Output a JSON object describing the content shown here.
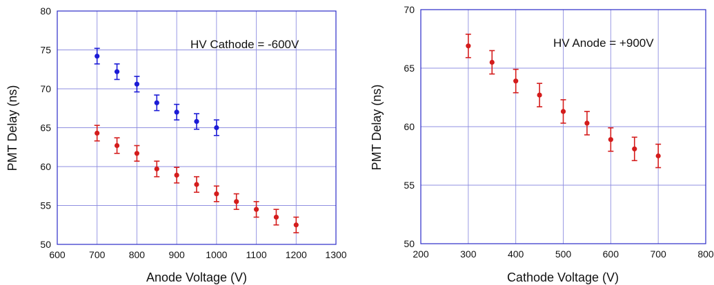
{
  "chart_data": [
    {
      "type": "scatter",
      "title": "",
      "xlabel": "Anode Voltage (V)",
      "ylabel": "PMT Delay (ns)",
      "xlim": [
        600,
        1300
      ],
      "ylim": [
        50,
        80
      ],
      "xticks": [
        600,
        700,
        800,
        900,
        1000,
        1100,
        1200,
        1300
      ],
      "yticks": [
        50,
        55,
        60,
        65,
        70,
        75,
        80
      ],
      "xtick_labels": [
        "600",
        "700",
        "800",
        "900",
        "1000",
        "1100",
        "1200",
        "1300"
      ],
      "ytick_labels": [
        "50",
        "55",
        "60",
        "65",
        "70",
        "75",
        "80"
      ],
      "grid": true,
      "annotation": "HV Cathode = -600V",
      "series": [
        {
          "color": "#1b1bd6",
          "x": [
            700,
            750,
            800,
            850,
            900,
            950,
            1000
          ],
          "y": [
            74.2,
            72.2,
            70.6,
            68.2,
            67.0,
            65.8,
            65.0
          ],
          "err": [
            1.0,
            1.0,
            1.0,
            1.0,
            1.0,
            1.0,
            1.0
          ]
        },
        {
          "color": "#d41c1c",
          "x": [
            700,
            750,
            800,
            850,
            900,
            950,
            1000,
            1050,
            1100,
            1150,
            1200
          ],
          "y": [
            64.3,
            62.7,
            61.7,
            59.7,
            58.9,
            57.7,
            56.5,
            55.5,
            54.5,
            53.5,
            52.5
          ],
          "err": [
            1.0,
            1.0,
            1.0,
            1.0,
            1.0,
            1.0,
            1.0,
            1.0,
            1.0,
            1.0,
            1.0
          ]
        }
      ]
    },
    {
      "type": "scatter",
      "title": "",
      "xlabel": "Cathode Voltage (V)",
      "ylabel": "PMT Delay (ns)",
      "xlim": [
        200,
        800
      ],
      "ylim": [
        50,
        70
      ],
      "xticks": [
        200,
        300,
        400,
        500,
        600,
        700,
        800
      ],
      "yticks": [
        50,
        55,
        60,
        65,
        70
      ],
      "xtick_labels": [
        "200",
        "300",
        "400",
        "500",
        "600",
        "700",
        "800"
      ],
      "ytick_labels": [
        "50",
        "55",
        "60",
        "65",
        "70"
      ],
      "grid": true,
      "annotation": "HV Anode = +900V",
      "series": [
        {
          "color": "#d41c1c",
          "x": [
            300,
            350,
            400,
            450,
            500,
            550,
            600,
            650,
            700
          ],
          "y": [
            66.9,
            65.5,
            63.9,
            62.7,
            61.3,
            60.3,
            58.9,
            58.1,
            57.5
          ],
          "err": [
            1.0,
            1.0,
            1.0,
            1.0,
            1.0,
            1.0,
            1.0,
            1.0,
            1.0
          ]
        }
      ]
    }
  ]
}
